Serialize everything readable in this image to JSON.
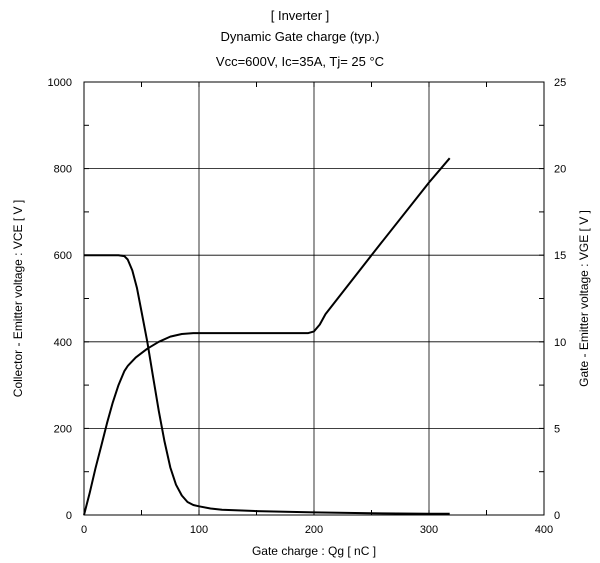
{
  "header": {
    "line1": "[ Inverter ]",
    "line2": "Dynamic Gate charge  (typ.)",
    "line3": "Vcc=600V, Ic=35A, Tj= 25  °C"
  },
  "chart_data": {
    "type": "line",
    "xlabel": "Gate charge :  Qg  [ nC ]",
    "ylabel": "Collector - Emitter voltage :  VCE  [ V ]",
    "y2label": "Gate - Emitter voltage :  VGE  [ V ]",
    "xlim": [
      0,
      400
    ],
    "ylim": [
      0,
      1000
    ],
    "y2lim": [
      0,
      25
    ],
    "xticks": [
      0,
      100,
      200,
      300,
      400
    ],
    "yticks": [
      0,
      200,
      400,
      600,
      800,
      1000
    ],
    "y2ticks": [
      0,
      5,
      10,
      15,
      20,
      25
    ],
    "grid": true,
    "series": [
      {
        "axis": "left",
        "x": [
          0,
          10,
          20,
          30,
          35,
          38,
          42,
          46,
          50,
          55,
          60,
          65,
          70,
          75,
          80,
          85,
          90,
          95,
          100,
          110,
          120,
          150,
          200,
          250,
          300,
          318
        ],
        "y": [
          600,
          600,
          600,
          600,
          598,
          590,
          565,
          525,
          470,
          400,
          320,
          240,
          170,
          110,
          70,
          45,
          30,
          23,
          20,
          15,
          12,
          9,
          6,
          4,
          3,
          3
        ]
      },
      {
        "axis": "right",
        "x": [
          0,
          5,
          10,
          15,
          20,
          25,
          30,
          35,
          38,
          45,
          55,
          65,
          75,
          85,
          95,
          100,
          120,
          150,
          180,
          195,
          200,
          205,
          210,
          250,
          300,
          318
        ],
        "y": [
          0,
          1.3,
          2.7,
          4.0,
          5.3,
          6.5,
          7.5,
          8.3,
          8.6,
          9.1,
          9.6,
          10.0,
          10.3,
          10.45,
          10.5,
          10.5,
          10.5,
          10.5,
          10.5,
          10.5,
          10.6,
          11.0,
          11.6,
          15.0,
          19.2,
          20.6
        ]
      }
    ]
  }
}
